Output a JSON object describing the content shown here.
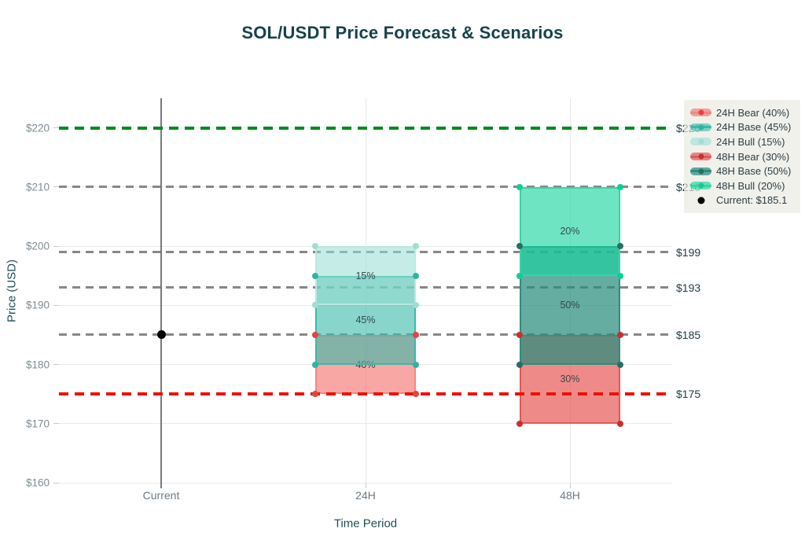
{
  "chart_data": {
    "type": "range-band-forecast",
    "title": "SOL/USDT Price Forecast & Scenarios",
    "xlabel": "Time Period",
    "ylabel": "Price (USD)",
    "categories": [
      "Current",
      "24H",
      "48H"
    ],
    "ylim": [
      160,
      225
    ],
    "grid": true,
    "legend_position": "top-right",
    "yticks": [
      {
        "value": 160,
        "label": "$160"
      },
      {
        "value": 170,
        "label": "$170"
      },
      {
        "value": 180,
        "label": "$180"
      },
      {
        "value": 190,
        "label": "$190"
      },
      {
        "value": 200,
        "label": "$200"
      },
      {
        "value": 210,
        "label": "$210"
      },
      {
        "value": 220,
        "label": "$220"
      }
    ],
    "current": {
      "category": "Current",
      "price": 185.1,
      "legend_label": "Current: $185.1",
      "color": "#000000"
    },
    "series": [
      {
        "name": "24H Bear (40%)",
        "category": "24H",
        "scenario": "bear",
        "low": 175,
        "high": 185,
        "probability": "40%",
        "line_color": "#f28782",
        "marker_color": "#e2453f",
        "fill_color": "rgba(242,95,90,0.55)"
      },
      {
        "name": "24H Base (45%)",
        "category": "24H",
        "scenario": "base",
        "low": 180,
        "high": 195,
        "probability": "45%",
        "line_color": "#3ab9aa",
        "marker_color": "#2fb3a4",
        "fill_color": "rgba(56,185,170,0.6)"
      },
      {
        "name": "24H Bull (15%)",
        "category": "24H",
        "scenario": "bull",
        "low": 190,
        "high": 200,
        "probability": "15%",
        "line_color": "#b9e8e0",
        "marker_color": "#9eded3",
        "fill_color": "rgba(150,220,210,0.55)"
      },
      {
        "name": "48H Bear (30%)",
        "category": "48H",
        "scenario": "bear",
        "low": 170,
        "high": 185,
        "probability": "30%",
        "line_color": "#e05a55",
        "marker_color": "#c9302b",
        "fill_color": "rgba(226,61,58,0.6)"
      },
      {
        "name": "48H Base (50%)",
        "category": "48H",
        "scenario": "base",
        "low": 180,
        "high": 200,
        "probability": "50%",
        "line_color": "#2f8d80",
        "marker_color": "#256f65",
        "fill_color": "rgba(42,140,125,0.72)"
      },
      {
        "name": "48H Bull (20%)",
        "category": "48H",
        "scenario": "bull",
        "low": 195,
        "high": 210,
        "probability": "20%",
        "line_color": "#35d6a4",
        "marker_color": "#0fce98",
        "fill_color": "rgba(23,211,158,0.62)"
      }
    ],
    "hlines": [
      {
        "price": 210,
        "label": "$210",
        "color": "#878787",
        "weight": "normal",
        "layer": "below"
      },
      {
        "price": 199,
        "label": "$199",
        "color": "#878787",
        "weight": "normal",
        "layer": "below"
      },
      {
        "price": 193,
        "label": "$193",
        "color": "#878787",
        "weight": "normal",
        "layer": "below"
      },
      {
        "price": 185,
        "label": "$185",
        "color": "#878787",
        "weight": "normal",
        "layer": "below"
      },
      {
        "price": 220,
        "label": "$220",
        "color": "#008a1e",
        "weight": "bold",
        "layer": "above"
      },
      {
        "price": 175,
        "label": "$175",
        "color": "#ee1100",
        "weight": "bold",
        "layer": "above"
      }
    ]
  }
}
